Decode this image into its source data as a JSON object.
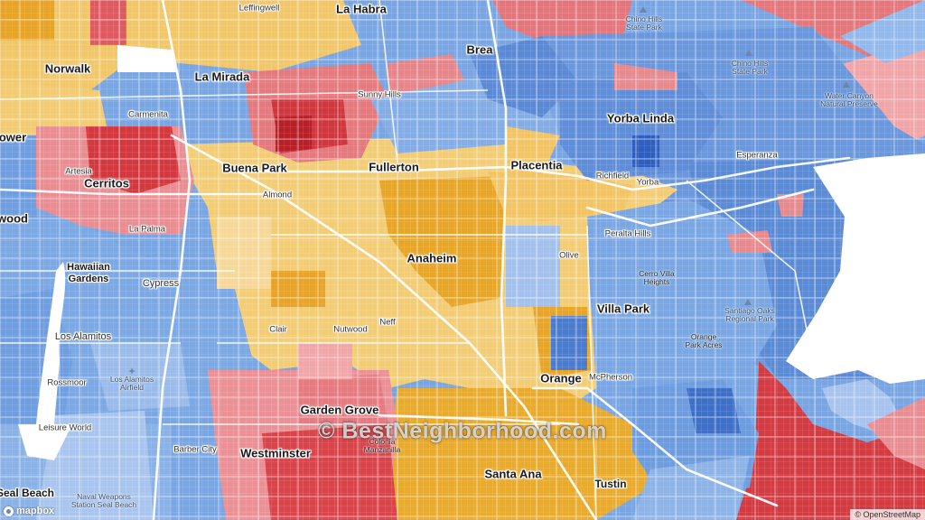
{
  "map": {
    "watermark": "© BestNeighborhood.com",
    "attribution": "© OpenStreetMap",
    "logo_text": "mapbox",
    "colors": {
      "strong_dem": "#5b86d6",
      "lean_dem": "#a8c3ee",
      "deep_dem": "#3a6ec8",
      "lean_rep": "#f2c76a",
      "rep_gold": "#e6a21d",
      "rep_pink": "#e58a8f",
      "rep_red": "#d3373f",
      "water": "#ffffff",
      "road": "#ffffff"
    },
    "places": {
      "la_habra": "La Habra",
      "leffingwell": "Leffingwell",
      "chino_hills_sp": "Chino Hills\nState Park",
      "chino_hills_sp2": "Chino Hills\nState Park",
      "norwalk": "Norwalk",
      "la_mirada": "La Mirada",
      "brea": "Brea",
      "carmenita": "Carmenita",
      "sunny_hills": "Sunny Hills",
      "water_canyon": "Water Canyon\nNatural Preserve",
      "yorba_linda": "Yorba Linda",
      "bellflower": "ower",
      "buena_park": "Buena Park",
      "fullerton": "Fullerton",
      "placentia": "Placentia",
      "esperanza": "Esperanza",
      "artesia": "Artesia",
      "richfield": "Richfield",
      "yorba": "Yorba",
      "cerritos": "Cerritos",
      "almond": "Almond",
      "lakewood": "wood",
      "la_palma": "La Palma",
      "peralta_hills": "Peralta Hills",
      "anaheim": "Anaheim",
      "olive": "Olive",
      "hawaiian_gardens": "Hawaiian\nGardens",
      "cerro_villa": "Cerro Villa\nHeights",
      "cypress": "Cypress",
      "villa_park": "Villa Park",
      "santiago_oaks": "Santiago Oaks\nRegional Park",
      "neff": "Neff",
      "clair": "Clair",
      "nutwood": "Nutwood",
      "los_alamitos": "Los Alamitos",
      "orange_park_acres": "Orange\nPark Acres",
      "los_alamitos_airfield": "Los Alamitos\nAirfield",
      "rossmoor": "Rossmoor",
      "orange": "Orange",
      "mcpherson": "McPherson",
      "garden_grove": "Garden Grove",
      "leisure_world": "Leisure World",
      "barber_city": "Barber City",
      "westminster": "Westminster",
      "colonia_manzanilla": "Colonia\nManzanilla",
      "santa_ana": "Santa Ana",
      "tustin": "Tustin",
      "seal_beach": "Seal Beach",
      "naval_weapons": "Naval Weapons\nStation Seal Beach"
    }
  }
}
